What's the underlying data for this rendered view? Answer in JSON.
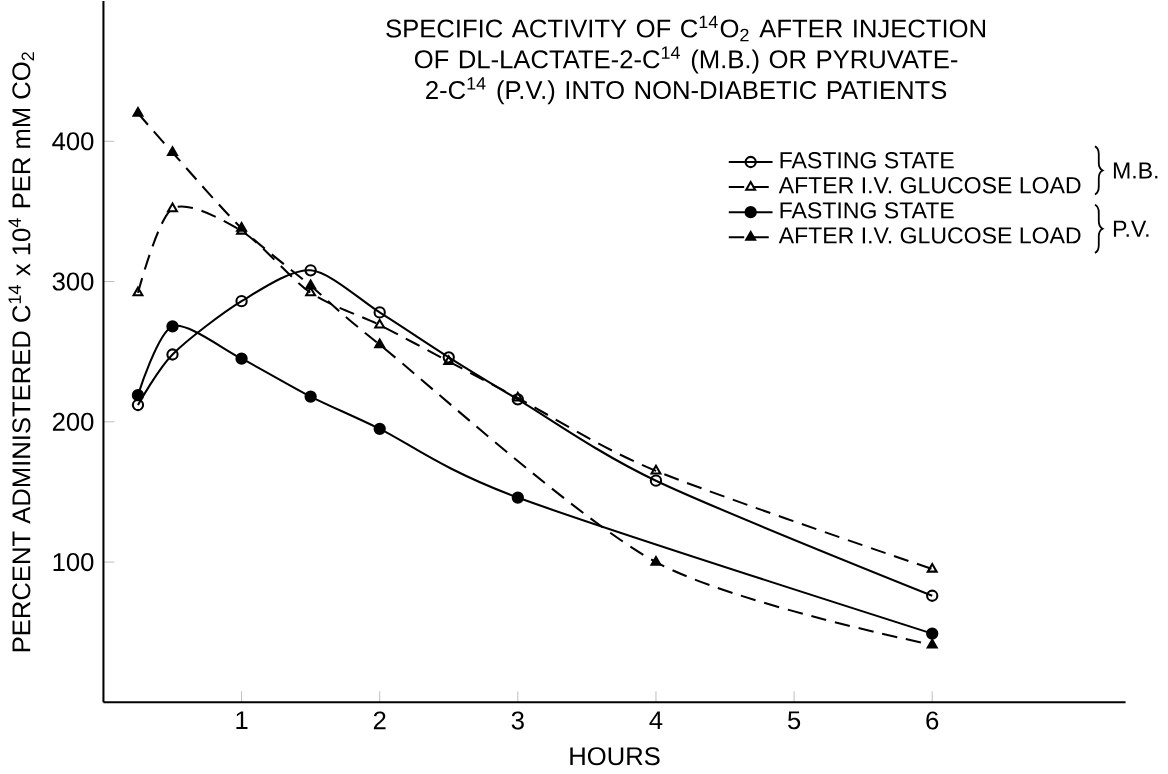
{
  "chart_data": {
    "type": "line",
    "title": "SPECIFIC ACTIVITY OF C$^{14}$O$_{2}$ AFTER INJECTION OF DL-LACTATE-2-C$^{14}$ (M.B.) OR PYRUVATE-2-C$^{14}$ (P.V.) INTO NON-DIABETIC PATIENTS",
    "xlabel": "HOURS",
    "ylabel": "PERCENT ADMINISTERED C$^{14}$ x 10$^{4}$ PER mM CO$_{2}$",
    "xlim": [
      0,
      7.4
    ],
    "ylim": [
      0,
      500
    ],
    "xticks": [
      1,
      2,
      3,
      4,
      5,
      6
    ],
    "yticks": [
      100,
      200,
      300,
      400
    ],
    "legend": "top right",
    "grid": false,
    "annotations": [
      "M.B.",
      "P.V."
    ],
    "series": [
      {
        "name": "FASTING STATE",
        "color": "#000000",
        "marker": "circle",
        "line_style": "solid",
        "x": [
          0.25,
          0.5,
          1,
          1.5,
          2,
          2.5,
          3,
          4,
          6
        ],
        "values": [
          212,
          248,
          286,
          308,
          278,
          246,
          216,
          158,
          76
        ]
      },
      {
        "name": "AFTER I.V. GLUCOSE LOAD",
        "color": "#000000",
        "marker": "triangle",
        "line_style": "dashed",
        "x": [
          0.25,
          0.5,
          1,
          1.5,
          2,
          2.5,
          3,
          4,
          6
        ],
        "values": [
          292,
          352,
          336,
          292,
          269,
          243,
          217,
          165,
          95
        ]
      },
      {
        "name": "FASTING STATE",
        "color": "#000000",
        "marker": "circle",
        "line_style": "solid",
        "x": [
          0.25,
          0.5,
          1,
          1.5,
          2,
          3,
          6
        ],
        "values": [
          219,
          268,
          245,
          218,
          195,
          146,
          49
        ]
      },
      {
        "name": "AFTER I.V. GLUCOSE LOAD",
        "color": "#000000",
        "marker": "triangle",
        "line_style": "dashed",
        "x": [
          0.25,
          0.5,
          1,
          1.5,
          2,
          4,
          6
        ],
        "values": [
          420,
          392,
          338,
          297,
          255,
          100,
          41
        ]
      }
    ]
  }
}
